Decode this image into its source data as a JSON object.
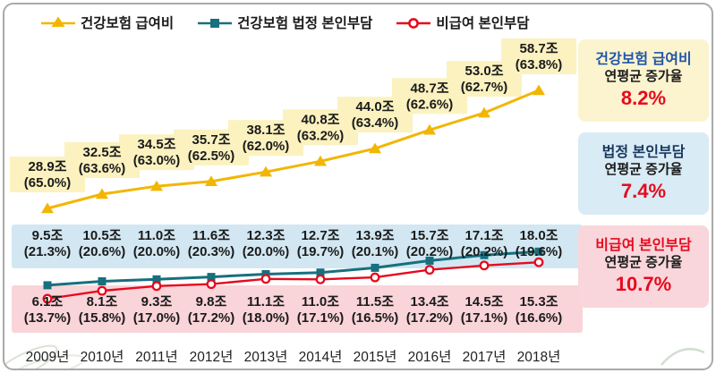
{
  "legend": [
    {
      "label": "건강보험 급여비",
      "color": "#F2B600",
      "marker": "triangle"
    },
    {
      "label": "건강보험 법정 본인부담",
      "color": "#17707E",
      "marker": "square"
    },
    {
      "label": "비급여 본인부담",
      "color": "#E60A1E",
      "marker": "circle"
    }
  ],
  "chart_data": {
    "type": "line",
    "unit": "조",
    "legend_position": "top",
    "grid": false,
    "value_axis_hidden": true,
    "categories": [
      "2009년",
      "2010년",
      "2011년",
      "2012년",
      "2013년",
      "2014년",
      "2015년",
      "2016년",
      "2017년",
      "2018년"
    ],
    "series": [
      {
        "name": "건강보험 급여비",
        "color": "#F2B600",
        "marker": "triangle",
        "label_bg": "#FBF2C0",
        "values_trillion_krw": [
          28.9,
          32.5,
          34.5,
          35.7,
          38.1,
          40.8,
          44.0,
          48.7,
          53.0,
          58.7
        ],
        "share_pct": [
          65.0,
          63.6,
          63.0,
          62.5,
          62.0,
          63.2,
          63.4,
          62.6,
          62.7,
          63.8
        ]
      },
      {
        "name": "건강보험 법정 본인부담",
        "color": "#17707E",
        "marker": "square",
        "label_bg": "#D2E7F2",
        "values_trillion_krw": [
          9.5,
          10.5,
          11.0,
          11.6,
          12.3,
          12.7,
          13.9,
          15.7,
          17.1,
          18.0
        ],
        "share_pct": [
          21.3,
          20.6,
          20.0,
          20.3,
          20.0,
          19.7,
          20.1,
          20.2,
          20.2,
          19.6
        ]
      },
      {
        "name": "비급여 본인부담",
        "color": "#E60A1E",
        "marker": "circle",
        "label_bg": "#F9D4D9",
        "values_trillion_krw": [
          6.1,
          8.1,
          9.3,
          9.8,
          11.1,
          11.0,
          11.5,
          13.4,
          14.5,
          15.3
        ],
        "share_pct": [
          13.7,
          15.8,
          17.0,
          17.2,
          18.0,
          17.1,
          16.5,
          17.2,
          17.1,
          16.6
        ]
      }
    ]
  },
  "summary_boxes": [
    {
      "title": "건강보험 급여비",
      "subtitle": "연평균 증가율",
      "value": "8.2%",
      "title_color": "#1F55A8",
      "bg": "#FCF4CF"
    },
    {
      "title": "법정 본인부담",
      "subtitle": "연평균 증가율",
      "value": "7.4%",
      "title_color": "#17375E",
      "bg": "#D9EBF5"
    },
    {
      "title": "비급여 본인부담",
      "subtitle": "연평균 증가율",
      "value": "10.7%",
      "title_color": "#E60A1E",
      "bg": "#F9D6DB"
    }
  ]
}
